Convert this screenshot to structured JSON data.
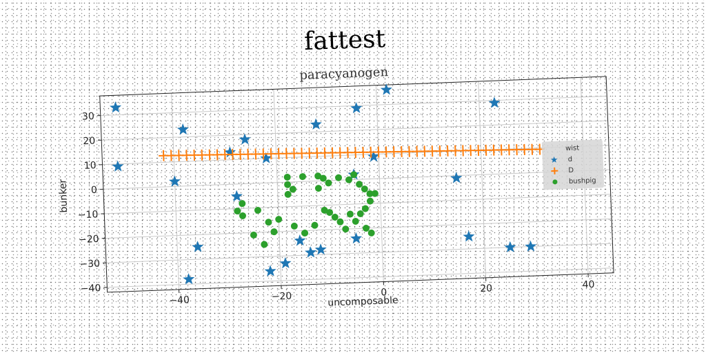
{
  "title": "fattest",
  "chart_data": {
    "type": "scatter",
    "subtitle": "paracyanogen",
    "xlabel": "uncomposable",
    "ylabel": "bunker",
    "xlim": [
      -54,
      45
    ],
    "ylim": [
      -42,
      38
    ],
    "xticks": [
      -40,
      -20,
      0,
      20,
      40
    ],
    "yticks": [
      -40,
      -30,
      -20,
      -10,
      0,
      10,
      20,
      30
    ],
    "xtick_labels": [
      "−40",
      "−20",
      "0",
      "20",
      "40"
    ],
    "ytick_labels": [
      "−40",
      "−30",
      "−20",
      "−10",
      "0",
      "10",
      "20",
      "30"
    ],
    "grid": true,
    "legend": {
      "title": "wist",
      "position": "right",
      "entries": [
        "d",
        "D",
        "bushpig"
      ]
    },
    "series": [
      {
        "name": "d",
        "marker": "star",
        "color": "#1f77b4",
        "points": [
          [
            -51,
            33
          ],
          [
            -51,
            9
          ],
          [
            -38,
            23
          ],
          [
            -40,
            2
          ],
          [
            -26,
            18
          ],
          [
            -29,
            13
          ],
          [
            -22,
            10
          ],
          [
            -12,
            23
          ],
          [
            -4,
            29
          ],
          [
            2,
            36
          ],
          [
            -1,
            9
          ],
          [
            -5,
            2
          ],
          [
            -28,
            -5
          ],
          [
            -36,
            -25
          ],
          [
            -38,
            -38
          ],
          [
            -22,
            -36
          ],
          [
            -19,
            -33
          ],
          [
            -16,
            -24
          ],
          [
            -14,
            -29
          ],
          [
            -12,
            -28
          ],
          [
            -5,
            -24
          ],
          [
            15,
            -1
          ],
          [
            17,
            -25
          ],
          [
            23,
            29
          ],
          [
            25,
            -30
          ],
          [
            29,
            -30
          ]
        ]
      },
      {
        "name": "D",
        "marker": "plus",
        "color": "#ff7f0e",
        "x_start": -42,
        "x_end": 32,
        "x_step": 1.5,
        "y_start": 12.7,
        "y_end": 9.4
      },
      {
        "name": "bushpig",
        "marker": "circle",
        "color": "#2ca02c",
        "points": [
          [
            -18,
            2
          ],
          [
            -18,
            -1
          ],
          [
            -18,
            -5
          ],
          [
            -17,
            -3
          ],
          [
            -15,
            2
          ],
          [
            -12,
            2
          ],
          [
            -11,
            1
          ],
          [
            -10,
            -1
          ],
          [
            -12,
            -3
          ],
          [
            -8,
            1
          ],
          [
            -6,
            0
          ],
          [
            -5,
            2
          ],
          [
            -4,
            -2
          ],
          [
            -3,
            -4
          ],
          [
            -2,
            -6
          ],
          [
            -1,
            -6
          ],
          [
            -2,
            -9
          ],
          [
            -3,
            -12
          ],
          [
            -4,
            -14
          ],
          [
            -6,
            -14
          ],
          [
            -8,
            -17
          ],
          [
            -9,
            -15
          ],
          [
            -10,
            -13
          ],
          [
            -11,
            -12
          ],
          [
            -13,
            -18
          ],
          [
            -15,
            -21
          ],
          [
            -17,
            -18
          ],
          [
            -20,
            -15
          ],
          [
            -21,
            -20
          ],
          [
            -22,
            -16
          ],
          [
            -23,
            -25
          ],
          [
            -25,
            -21
          ],
          [
            -24,
            -11
          ],
          [
            -27,
            -13
          ],
          [
            -27,
            -8
          ],
          [
            -28,
            -11
          ],
          [
            -3,
            -20
          ],
          [
            -2,
            -22
          ],
          [
            -5,
            -17
          ],
          [
            -7,
            -20
          ]
        ]
      }
    ]
  }
}
